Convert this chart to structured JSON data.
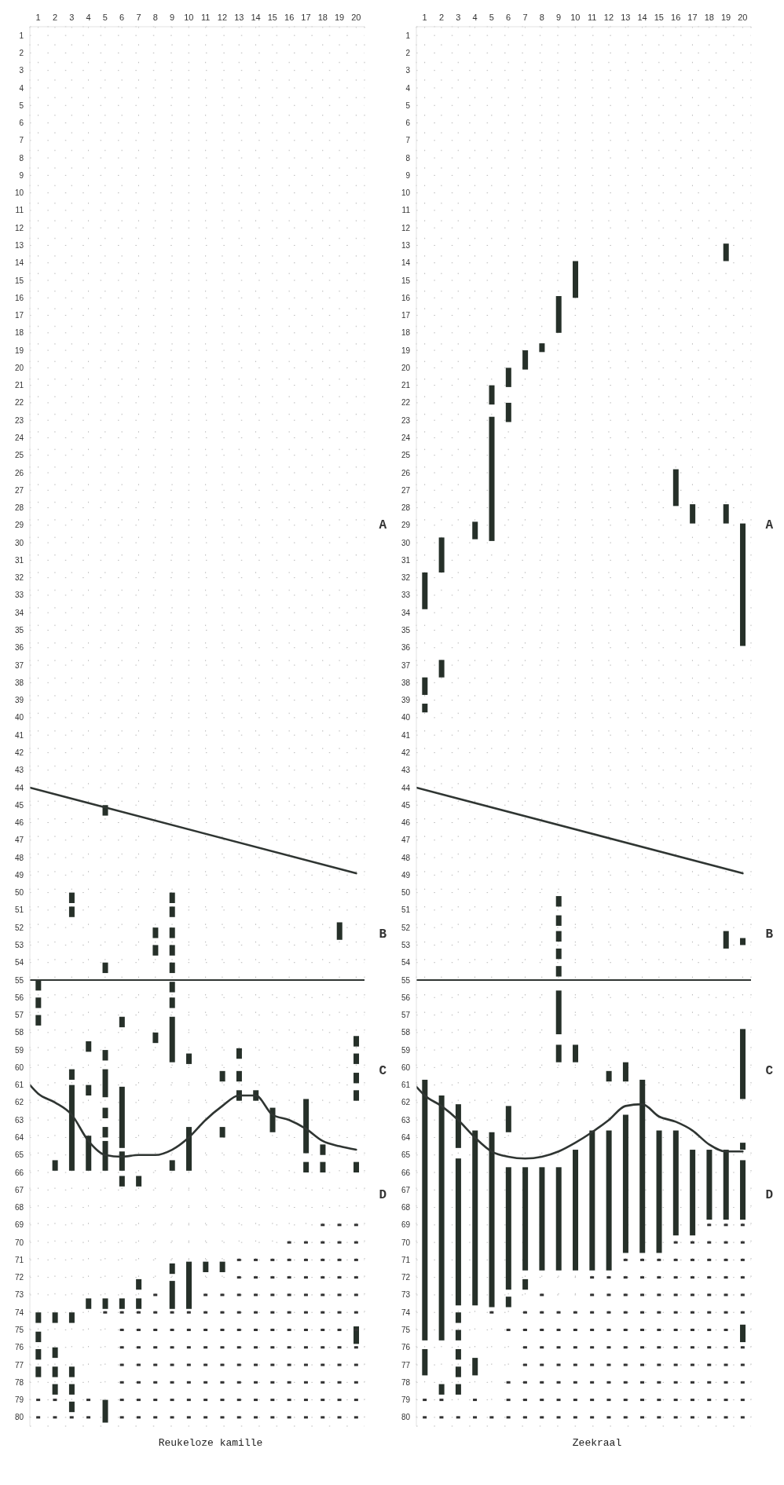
{
  "chart_data": [
    {
      "type": "bar",
      "title": "Reukeloze kamille",
      "xlim": [
        0.5,
        20.5
      ],
      "xticks": [
        1,
        2,
        3,
        4,
        5,
        6,
        7,
        8,
        9,
        10,
        11,
        12,
        13,
        14,
        15,
        16,
        17,
        18,
        19,
        20
      ],
      "ylim": [
        80.5,
        0.5
      ],
      "yticks": [
        1,
        2,
        3,
        4,
        5,
        6,
        7,
        8,
        9,
        10,
        11,
        12,
        13,
        14,
        15,
        16,
        17,
        18,
        19,
        20,
        21,
        22,
        23,
        24,
        25,
        26,
        27,
        28,
        29,
        30,
        31,
        32,
        33,
        34,
        35,
        36,
        37,
        38,
        39,
        40,
        41,
        42,
        43,
        44,
        45,
        46,
        47,
        48,
        49,
        50,
        51,
        52,
        53,
        54,
        55,
        56,
        57,
        58,
        59,
        60,
        61,
        62,
        63,
        64,
        65,
        66,
        67,
        68,
        69,
        70,
        71,
        72,
        73,
        74,
        75,
        76,
        77,
        78,
        79,
        80
      ],
      "grid": true,
      "annotations": [
        "A",
        "B",
        "C",
        "D"
      ],
      "ref_lines": [
        {
          "axis": "y",
          "value": 55,
          "color": "#2f3532"
        }
      ],
      "series": [
        {
          "type": "bar",
          "color": "#263029",
          "x": [
            1,
            2,
            3,
            4,
            5,
            6,
            7,
            8,
            9,
            10,
            11,
            12,
            13,
            14,
            15,
            17,
            18,
            19,
            20
          ],
          "base": [
            55.0,
            65.3,
            50.0,
            58.5,
            45.0,
            57.1,
            66.2,
            52.0,
            50.0,
            59.2,
            71.1,
            60.2,
            58.9,
            61.3,
            62.3,
            61.8,
            64.4,
            51.7,
            58.2
          ],
          "values": [
            0.6,
            0.6,
            0.6,
            0.6,
            0.6,
            0.6,
            0.6,
            0.6,
            0.6,
            0.6,
            0.6,
            0.6,
            0.6,
            0.6,
            1.4,
            3.1,
            0.6,
            1,
            0.6
          ]
        },
        {
          "type": "bar",
          "color": "#263029",
          "x": [
            1,
            2,
            3,
            4,
            5,
            6,
            7,
            8,
            9,
            10,
            12,
            13,
            17,
            18,
            20
          ],
          "base": [
            56.0,
            74.0,
            50.8,
            61.0,
            54.0,
            61.1,
            72.1,
            53.0,
            50.8,
            63.4,
            63.4,
            60.2,
            65.4,
            65.4,
            59.2
          ],
          "values": [
            0.6,
            0.6,
            0.6,
            0.6,
            0.6,
            3.5,
            0.6,
            0.6,
            0.6,
            2.5,
            0.6,
            0.6,
            0.6,
            0.6,
            0.6
          ]
        },
        {
          "type": "bar",
          "color": "#263029",
          "x": [
            1,
            2,
            3,
            4,
            5,
            6,
            7,
            8,
            9,
            10,
            12,
            13,
            20
          ],
          "base": [
            57.0,
            76.0,
            60.1,
            63.9,
            59.0,
            64.8,
            73.2,
            58.0,
            52.0,
            71.1,
            71.1,
            61.3,
            60.3
          ],
          "values": [
            0.6,
            0.6,
            0.6,
            2,
            0.6,
            1.1,
            0.6,
            0.6,
            0.6,
            2.7,
            0.6,
            0.6,
            0.6
          ]
        },
        {
          "type": "bar",
          "color": "#263029",
          "x": [
            1,
            2,
            3,
            4,
            5,
            6,
            9,
            20
          ],
          "base": [
            74.0,
            77.1,
            61.0,
            73.2,
            60.1,
            66.2,
            53.0,
            61.3
          ],
          "values": [
            0.6,
            0.6,
            4.9,
            0.6,
            1.6,
            0.6,
            0.6,
            0.6
          ]
        },
        {
          "type": "bar",
          "color": "#263029",
          "x": [
            1,
            2,
            3,
            5,
            6,
            9,
            20
          ],
          "base": [
            75.1,
            78.1,
            74.0,
            62.3,
            73.2,
            54.0,
            65.4
          ],
          "values": [
            0.6,
            0.6,
            0.6,
            0.6,
            0.6,
            0.6,
            0.6
          ]
        },
        {
          "type": "bar",
          "color": "#263029",
          "x": [
            1,
            3,
            5,
            9,
            20
          ],
          "base": [
            76.1,
            77.1,
            63.4,
            55.1,
            74.8
          ],
          "values": [
            0.6,
            0.6,
            0.6,
            0.6,
            1
          ]
        },
        {
          "type": "bar",
          "color": "#263029",
          "x": [
            1,
            3,
            5,
            9
          ],
          "base": [
            77.1,
            78.1,
            64.2,
            56.0
          ],
          "values": [
            0.6,
            0.6,
            1.7,
            0.6
          ]
        },
        {
          "type": "bar",
          "color": "#263029",
          "x": [
            3,
            5,
            9
          ],
          "base": [
            79.1,
            73.2,
            57.1
          ],
          "values": [
            0.6,
            0.6,
            2.6
          ]
        },
        {
          "type": "bar",
          "color": "#263029",
          "x": [
            5,
            9
          ],
          "base": [
            79.0,
            65.3
          ],
          "values": [
            1.3,
            0.6
          ]
        },
        {
          "type": "bar",
          "color": "#263029",
          "x": [
            9
          ],
          "base": [
            71.2
          ],
          "values": [
            0.6
          ]
        },
        {
          "type": "bar",
          "color": "#263029",
          "x": [
            9
          ],
          "base": [
            72.2
          ],
          "values": [
            1.6
          ]
        },
        {
          "type": "scatter",
          "marker": "square",
          "color": "#333333",
          "x": [
            1,
            1,
            2,
            2,
            3,
            4,
            4,
            5,
            6,
            6,
            6,
            6,
            6,
            6,
            6,
            7,
            7,
            7,
            7,
            7,
            7,
            7,
            8,
            8,
            8,
            8,
            8,
            8,
            8,
            8,
            9,
            9,
            9,
            9,
            9,
            9,
            9,
            10,
            10,
            10,
            10,
            10,
            10,
            10,
            11,
            11,
            11,
            11,
            11,
            11,
            11,
            11,
            12,
            12,
            12,
            12,
            12,
            12,
            12,
            12,
            13,
            13,
            13,
            13,
            13,
            13,
            13,
            13,
            13,
            13,
            14,
            14,
            14,
            14,
            14,
            14,
            14,
            14,
            14,
            14,
            15,
            15,
            15,
            15,
            15,
            15,
            15,
            15,
            15,
            15,
            16,
            16,
            16,
            16,
            16,
            16,
            16,
            16,
            16,
            16,
            16,
            17,
            17,
            17,
            17,
            17,
            17,
            17,
            17,
            17,
            17,
            17,
            18,
            18,
            18,
            18,
            18,
            18,
            18,
            18,
            18,
            18,
            18,
            18,
            19,
            19,
            19,
            19,
            19,
            19,
            19,
            19,
            19,
            19,
            19,
            19,
            20,
            20,
            20,
            20,
            20,
            20,
            20,
            20,
            20,
            20,
            20,
            20
          ],
          "values": [
            79,
            80,
            79,
            80,
            80,
            79,
            80,
            74,
            74,
            75,
            76,
            77,
            78,
            79,
            80,
            74,
            75,
            76,
            77,
            78,
            79,
            80,
            73,
            74,
            75,
            76,
            77,
            78,
            79,
            80,
            74,
            75,
            76,
            77,
            78,
            79,
            80,
            74,
            75,
            76,
            77,
            78,
            79,
            80,
            73,
            74,
            75,
            76,
            77,
            78,
            79,
            80,
            73,
            74,
            75,
            76,
            77,
            78,
            79,
            80,
            71,
            72,
            73,
            74,
            75,
            76,
            77,
            78,
            79,
            80,
            71,
            72,
            73,
            74,
            75,
            76,
            77,
            78,
            79,
            80,
            71,
            72,
            73,
            74,
            75,
            76,
            77,
            78,
            79,
            80,
            70,
            71,
            72,
            73,
            74,
            75,
            76,
            77,
            78,
            79,
            80,
            70,
            71,
            72,
            73,
            74,
            75,
            76,
            77,
            78,
            79,
            80,
            69,
            70,
            71,
            72,
            73,
            74,
            75,
            76,
            77,
            78,
            79,
            80,
            69,
            70,
            71,
            72,
            73,
            74,
            75,
            76,
            77,
            78,
            79,
            80,
            69,
            70,
            71,
            72,
            73,
            74,
            75,
            76,
            77,
            78,
            79,
            80
          ]
        },
        {
          "type": "line",
          "color": "#2f3532",
          "x": [
            0.5,
            20
          ],
          "values": [
            44,
            48.9
          ]
        },
        {
          "type": "line",
          "color": "#2f3532",
          "x": [
            0.5,
            1,
            2,
            3,
            4,
            5,
            6,
            7,
            8,
            9,
            10,
            11,
            12,
            13,
            14,
            15,
            16,
            17,
            18,
            19,
            20
          ],
          "values": [
            61,
            61.5,
            62,
            62.7,
            64.2,
            65,
            65.1,
            65,
            65,
            64.7,
            64,
            63,
            62.2,
            61.6,
            61.6,
            62.7,
            63,
            63.5,
            64.2,
            64.5,
            64.7
          ]
        }
      ]
    },
    {
      "type": "bar",
      "title": "Zeekraal",
      "xlim": [
        0.5,
        20.5
      ],
      "xticks": [
        1,
        2,
        3,
        4,
        5,
        6,
        7,
        8,
        9,
        10,
        11,
        12,
        13,
        14,
        15,
        16,
        17,
        18,
        19,
        20
      ],
      "ylim": [
        80.5,
        0.5
      ],
      "yticks": [
        1,
        2,
        3,
        4,
        5,
        6,
        7,
        8,
        9,
        10,
        11,
        12,
        13,
        14,
        15,
        16,
        17,
        18,
        19,
        20,
        21,
        22,
        23,
        24,
        25,
        26,
        27,
        28,
        29,
        30,
        31,
        32,
        33,
        34,
        35,
        36,
        37,
        38,
        39,
        40,
        41,
        42,
        43,
        44,
        45,
        46,
        47,
        48,
        49,
        50,
        51,
        52,
        53,
        54,
        55,
        56,
        57,
        58,
        59,
        60,
        61,
        62,
        63,
        64,
        65,
        66,
        67,
        68,
        69,
        70,
        71,
        72,
        73,
        74,
        75,
        76,
        77,
        78,
        79,
        80
      ],
      "grid": true,
      "annotations": [
        "A",
        "B",
        "C",
        "D"
      ],
      "ref_lines": [
        {
          "axis": "y",
          "value": 55,
          "color": "#2f3532"
        }
      ],
      "series": [
        {
          "type": "bar",
          "color": "#263029",
          "x": [
            1,
            2,
            3,
            4,
            5,
            6,
            7,
            8,
            9,
            10,
            11,
            12,
            13,
            14,
            15,
            16,
            17,
            18,
            19,
            20
          ],
          "base": [
            31.7,
            29.7,
            62.1,
            28.8,
            21,
            20,
            19,
            18.6,
            15.9,
            13.9,
            63.6,
            60.2,
            59.7,
            60.7,
            63.6,
            25.8,
            27.8,
            64.7,
            12.9,
            28.9
          ],
          "values": [
            2.1,
            2,
            2.5,
            1,
            1.1,
            1.1,
            1.1,
            0.5,
            2.1,
            2.1,
            8,
            0.6,
            1.1,
            9.9,
            7,
            2.1,
            1.1,
            4,
            1,
            7
          ]
        },
        {
          "type": "bar",
          "color": "#263029",
          "x": [
            1,
            2,
            3,
            4,
            5,
            6,
            7,
            8,
            9,
            10,
            12,
            13,
            16,
            17,
            19,
            20
          ],
          "base": [
            37.7,
            36.7,
            65.2,
            63.6,
            22.8,
            22,
            65.7,
            65.7,
            50.2,
            58.7,
            63.6,
            62.7,
            63.6,
            64.7,
            27.8,
            52.6
          ],
          "values": [
            1,
            1,
            8.4,
            10,
            7.1,
            1.1,
            5.9,
            5.9,
            0.6,
            1,
            8,
            7.9,
            6,
            4.9,
            1.1,
            0.4
          ]
        },
        {
          "type": "bar",
          "color": "#263029",
          "x": [
            1,
            2,
            3,
            4,
            5,
            6,
            7,
            9,
            10,
            19,
            20
          ],
          "base": [
            39.2,
            61.6,
            74.0,
            76.6,
            63.7,
            62.2,
            72.1,
            51.3,
            64.7,
            52.2,
            57.8
          ],
          "values": [
            0.5,
            14,
            0.6,
            1,
            10,
            1.5,
            0.6,
            0.6,
            6.9,
            1,
            4
          ]
        },
        {
          "type": "bar",
          "color": "#263029",
          "x": [
            1,
            2,
            3,
            6,
            9,
            19,
            20
          ],
          "base": [
            60.7,
            78.1,
            75.0,
            65.7,
            52.2,
            64.7,
            64.3
          ],
          "values": [
            14.9,
            0.6,
            0.6,
            7,
            0.6,
            4,
            0.4
          ]
        },
        {
          "type": "bar",
          "color": "#263029",
          "x": [
            1,
            3,
            6,
            9,
            20
          ],
          "base": [
            76.1,
            76.1,
            73.1,
            53.2,
            65.3
          ],
          "values": [
            1.5,
            0.6,
            0.6,
            0.6,
            3.4
          ]
        },
        {
          "type": "bar",
          "color": "#263029",
          "x": [
            3,
            9,
            20
          ],
          "base": [
            77.1,
            54.2,
            74.7
          ],
          "values": [
            0.6,
            0.6,
            1
          ]
        },
        {
          "type": "bar",
          "color": "#263029",
          "x": [
            3,
            9
          ],
          "base": [
            78.1,
            55.6
          ],
          "values": [
            0.6,
            2.5
          ]
        },
        {
          "type": "bar",
          "color": "#263029",
          "x": [
            9
          ],
          "base": [
            58.7
          ],
          "values": [
            1
          ]
        },
        {
          "type": "bar",
          "color": "#263029",
          "x": [
            9
          ],
          "base": [
            65.7
          ],
          "values": [
            5.9
          ]
        },
        {
          "type": "scatter",
          "marker": "square",
          "color": "#333333",
          "x": [
            1,
            1,
            2,
            2,
            3,
            4,
            4,
            5,
            5,
            6,
            6,
            6,
            6,
            7,
            7,
            7,
            7,
            7,
            7,
            7,
            8,
            8,
            8,
            8,
            8,
            8,
            8,
            8,
            9,
            9,
            9,
            9,
            9,
            9,
            9,
            10,
            10,
            10,
            10,
            10,
            10,
            10,
            11,
            11,
            11,
            11,
            11,
            11,
            11,
            11,
            11,
            12,
            12,
            12,
            12,
            12,
            12,
            12,
            12,
            12,
            13,
            13,
            13,
            13,
            13,
            13,
            13,
            13,
            13,
            13,
            14,
            14,
            14,
            14,
            14,
            14,
            14,
            14,
            14,
            14,
            15,
            15,
            15,
            15,
            15,
            15,
            15,
            15,
            15,
            15,
            16,
            16,
            16,
            16,
            16,
            16,
            16,
            16,
            16,
            16,
            16,
            17,
            17,
            17,
            17,
            17,
            17,
            17,
            17,
            17,
            17,
            17,
            18,
            18,
            18,
            18,
            18,
            18,
            18,
            18,
            18,
            18,
            18,
            18,
            19,
            19,
            19,
            19,
            19,
            19,
            19,
            19,
            19,
            19,
            19,
            19,
            20,
            20,
            20,
            20,
            20,
            20,
            20,
            20,
            20,
            20,
            20
          ],
          "values": [
            79,
            80,
            79,
            80,
            80,
            79,
            80,
            74,
            80,
            75,
            78,
            79,
            80,
            74,
            75,
            76,
            77,
            78,
            79,
            80,
            73,
            74,
            75,
            76,
            77,
            78,
            79,
            80,
            74,
            75,
            76,
            77,
            78,
            79,
            80,
            74,
            75,
            76,
            77,
            78,
            79,
            80,
            72,
            73,
            74,
            75,
            76,
            77,
            78,
            79,
            80,
            72,
            73,
            74,
            75,
            76,
            77,
            78,
            79,
            80,
            71,
            72,
            73,
            74,
            75,
            76,
            77,
            78,
            79,
            80,
            71,
            72,
            73,
            74,
            75,
            76,
            77,
            78,
            79,
            80,
            71,
            72,
            73,
            74,
            75,
            76,
            77,
            78,
            79,
            80,
            70,
            71,
            72,
            73,
            74,
            75,
            76,
            77,
            78,
            79,
            80,
            70,
            71,
            72,
            73,
            74,
            75,
            76,
            77,
            78,
            79,
            80,
            69,
            70,
            71,
            72,
            73,
            74,
            75,
            76,
            77,
            78,
            79,
            80,
            69,
            70,
            71,
            72,
            73,
            74,
            75,
            76,
            77,
            78,
            79,
            80,
            69,
            70,
            71,
            72,
            73,
            74,
            76,
            77,
            78,
            79,
            80
          ]
        },
        {
          "type": "line",
          "color": "#2f3532",
          "x": [
            0.5,
            20
          ],
          "values": [
            44,
            48.9
          ]
        },
        {
          "type": "line",
          "color": "#2f3532",
          "x": [
            0.5,
            1,
            2,
            3,
            4,
            5,
            6,
            7,
            8,
            9,
            10,
            11,
            12,
            13,
            14,
            15,
            16,
            17,
            18,
            19,
            20
          ],
          "values": [
            61.1,
            61.6,
            62.2,
            63,
            64,
            64.8,
            65.1,
            65.2,
            65.1,
            64.8,
            64.3,
            63.7,
            63,
            62.2,
            62.1,
            62.8,
            63.1,
            63.6,
            64.4,
            64.8,
            64.8
          ]
        }
      ]
    }
  ]
}
